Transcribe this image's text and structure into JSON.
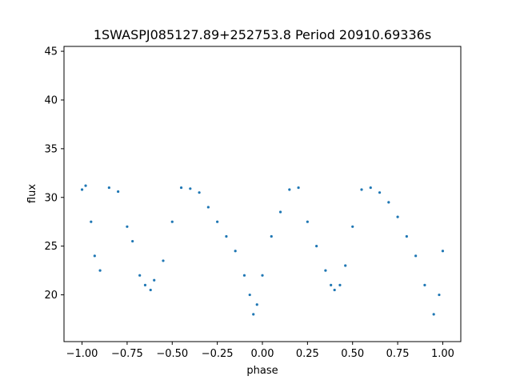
{
  "chart_data": {
    "type": "scatter",
    "title": "1SWASPJ085127.89+252753.8 Period 20910.69336s",
    "xlabel": "phase",
    "ylabel": "flux",
    "xlim": [
      -1.1,
      1.1
    ],
    "ylim": [
      15.2,
      45.5
    ],
    "xticks": [
      -1.0,
      -0.75,
      -0.5,
      -0.25,
      0.0,
      0.25,
      0.5,
      0.75,
      1.0
    ],
    "xtick_labels": [
      "−1.00",
      "−0.75",
      "−0.50",
      "−0.25",
      "0.00",
      "0.25",
      "0.50",
      "0.75",
      "1.00"
    ],
    "yticks": [
      20,
      25,
      30,
      35,
      40,
      45
    ],
    "ytick_labels": [
      "20",
      "25",
      "30",
      "35",
      "40",
      "45"
    ],
    "grid": false,
    "marker_color": "#1f77b4",
    "series": [
      {
        "points": [
          [
            -1.0,
            30.8
          ],
          [
            -0.98,
            31.2
          ],
          [
            -0.95,
            27.5
          ],
          [
            -0.93,
            24.0
          ],
          [
            -0.9,
            22.5
          ],
          [
            -0.85,
            31.0
          ],
          [
            -0.8,
            30.6
          ],
          [
            -0.75,
            27.0
          ],
          [
            -0.72,
            25.5
          ],
          [
            -0.68,
            22.0
          ],
          [
            -0.65,
            21.0
          ],
          [
            -0.62,
            20.5
          ],
          [
            -0.6,
            21.5
          ],
          [
            -0.55,
            23.5
          ],
          [
            -0.5,
            27.5
          ],
          [
            -0.45,
            31.0
          ],
          [
            -0.4,
            30.9
          ],
          [
            -0.35,
            30.5
          ],
          [
            -0.3,
            29.0
          ],
          [
            -0.25,
            27.5
          ],
          [
            -0.2,
            26.0
          ],
          [
            -0.15,
            24.5
          ],
          [
            -0.1,
            22.0
          ],
          [
            -0.07,
            20.0
          ],
          [
            -0.05,
            18.0
          ],
          [
            -0.03,
            19.0
          ],
          [
            0.0,
            22.0
          ],
          [
            0.05,
            26.0
          ],
          [
            0.1,
            28.5
          ],
          [
            0.15,
            30.8
          ],
          [
            0.2,
            31.0
          ],
          [
            0.25,
            27.5
          ],
          [
            0.3,
            25.0
          ],
          [
            0.35,
            22.5
          ],
          [
            0.38,
            21.0
          ],
          [
            0.4,
            20.5
          ],
          [
            0.43,
            21.0
          ],
          [
            0.46,
            23.0
          ],
          [
            0.5,
            27.0
          ],
          [
            0.55,
            30.8
          ],
          [
            0.6,
            31.0
          ],
          [
            0.65,
            30.5
          ],
          [
            0.7,
            29.5
          ],
          [
            0.75,
            28.0
          ],
          [
            0.8,
            26.0
          ],
          [
            0.85,
            24.0
          ],
          [
            0.9,
            21.0
          ],
          [
            0.95,
            18.0
          ],
          [
            0.98,
            20.0
          ],
          [
            1.0,
            24.5
          ]
        ]
      }
    ]
  }
}
